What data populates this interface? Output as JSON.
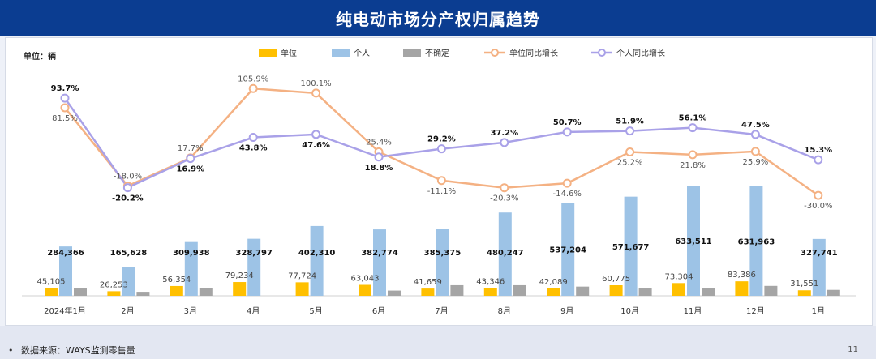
{
  "title": "纯电动市场分产权归属趋势",
  "footer": {
    "bullet": "•",
    "source": "数据来源：WAYS监测零售量",
    "page_number": "11"
  },
  "colors": {
    "unit_bar": "#ffc000",
    "person_bar": "#9dc3e6",
    "uncertain_bar": "#a5a5a5",
    "unit_line": "#f4b183",
    "person_line": "#a9a1e8"
  },
  "chart_data": {
    "type": "bar",
    "unit_label": "单位：辆",
    "categories": [
      "2024年1月",
      "2月",
      "3月",
      "4月",
      "5月",
      "6月",
      "7月",
      "8月",
      "9月",
      "10月",
      "11月",
      "12月",
      "1月"
    ],
    "series": [
      {
        "name": "单位",
        "type": "bar",
        "values": [
          45105,
          26253,
          56354,
          79234,
          77724,
          63043,
          41659,
          43346,
          42089,
          60775,
          73304,
          83386,
          31551
        ]
      },
      {
        "name": "个人",
        "type": "bar",
        "values": [
          284366,
          165628,
          309938,
          328797,
          402310,
          382774,
          385375,
          480247,
          537204,
          571677,
          633511,
          631963,
          327741
        ]
      },
      {
        "name": "不确定",
        "type": "bar",
        "values": [
          42000,
          23000,
          45000,
          0,
          0,
          30000,
          61000,
          61000,
          53000,
          42000,
          42000,
          57000,
          34000
        ]
      },
      {
        "name": "单位同比增长",
        "type": "line",
        "values": [
          81.5,
          -18.0,
          17.7,
          105.9,
          100.1,
          25.4,
          -11.1,
          -20.3,
          -14.6,
          25.2,
          21.8,
          25.9,
          -30.0
        ]
      },
      {
        "name": "个人同比增长",
        "type": "line",
        "values": [
          93.7,
          -20.2,
          16.9,
          43.8,
          47.6,
          18.8,
          29.2,
          37.2,
          50.7,
          51.9,
          56.1,
          47.5,
          15.3
        ]
      }
    ],
    "bar_label_texts": {
      "unit": [
        "45,105",
        "26,253",
        "56,354",
        "79,234",
        "77,724",
        "63,043",
        "41,659",
        "43,346",
        "42,089",
        "60,775",
        "73,304",
        "83,386",
        "31,551"
      ],
      "person": [
        "284,366",
        "165,628",
        "309,938",
        "328,797",
        "402,310",
        "382,774",
        "385,375",
        "480,247",
        "537,204",
        "571,677",
        "633,511",
        "631,963",
        "327,741"
      ]
    },
    "line_label_texts": {
      "unit": [
        "81.5%",
        "-18.0%",
        "17.7%",
        "105.9%",
        "100.1%",
        "25.4%",
        "-11.1%",
        "-20.3%",
        "-14.6%",
        "25.2%",
        "21.8%",
        "25.9%",
        "-30.0%"
      ],
      "person": [
        "93.7%",
        "-20.2%",
        "16.9%",
        "43.8%",
        "47.6%",
        "18.8%",
        "29.2%",
        "37.2%",
        "50.7%",
        "51.9%",
        "56.1%",
        "47.5%",
        "15.3%"
      ]
    },
    "legend_position": "top",
    "grid": false
  }
}
